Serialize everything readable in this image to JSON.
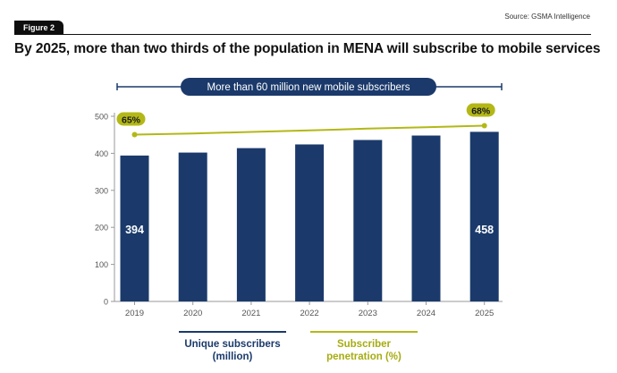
{
  "header": {
    "figure_tag": "Figure 2",
    "source": "Source: GSMA Intelligence",
    "title": "By 2025, more than two thirds of the population in MENA will subscribe to mobile services"
  },
  "chart_data": {
    "type": "bar",
    "categories": [
      "2019",
      "2020",
      "2021",
      "2022",
      "2023",
      "2024",
      "2025"
    ],
    "series": [
      {
        "name": "Unique subscribers (million)",
        "values": [
          394,
          402,
          414,
          424,
          436,
          448,
          458
        ]
      },
      {
        "name": "Subscriber penetration (%)",
        "type": "line",
        "values": [
          65,
          65.4,
          65.9,
          66.4,
          67,
          67.5,
          68
        ]
      }
    ],
    "ylim": [
      0,
      500
    ],
    "yticks": [
      0,
      100,
      200,
      300,
      400,
      500
    ],
    "bar_labels": [
      {
        "index": 0,
        "text": "394"
      },
      {
        "index": 6,
        "text": "458"
      }
    ],
    "line_labels": [
      {
        "index": 0,
        "text": "65%"
      },
      {
        "index": 6,
        "text": "68%"
      }
    ],
    "annotation": "More than 60 million new mobile subscribers",
    "legend": [
      {
        "line1": "Unique subscribers",
        "line2": "(million)",
        "color": "#1b3a6b"
      },
      {
        "line1": "Subscriber",
        "line2": "penetration (%)",
        "color": "#b3b817"
      }
    ],
    "colors": {
      "bar": "#1b3a6b",
      "line": "#b3b817",
      "axis": "#999999",
      "text": "#555555"
    }
  }
}
